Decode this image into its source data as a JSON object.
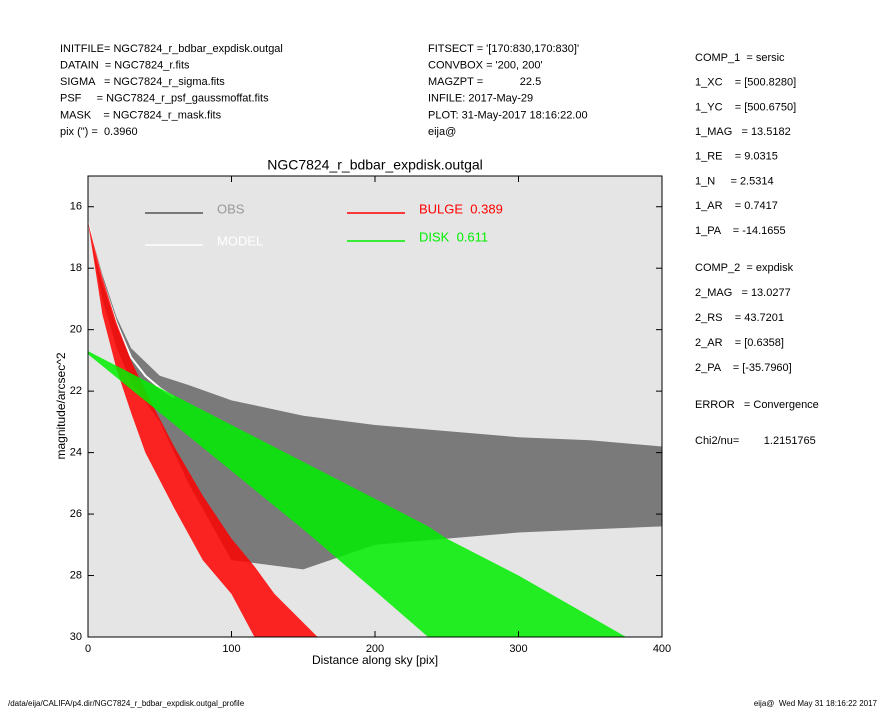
{
  "header": {
    "left": [
      "INITFILE= NGC7824_r_bdbar_expdisk.outgal",
      "DATAIN  = NGC7824_r.fits",
      "SIGMA   = NGC7824_r_sigma.fits",
      "PSF     = NGC7824_r_psf_gaussmoffat.fits",
      "MASK    = NGC7824_r_mask.fits",
      "pix (\") =  0.3960"
    ],
    "middle": [
      "FITSECT = '[170:830,170:830]'",
      "CONVBOX = '200, 200'",
      "MAGZPT =            22.5",
      "INFILE: 2017-May-29",
      "PLOT: 31-May-2017 18:16:22.00",
      "eija@"
    ],
    "params1": [
      "COMP_1  = sersic",
      "1_XC    = [500.8280]",
      "1_YC    = [500.6750]",
      "1_MAG   = 13.5182",
      "1_RE    = 9.0315",
      "1_N     = 2.5314",
      "1_AR    = 0.7417",
      "1_PA    = -14.1655"
    ],
    "params2": [
      "COMP_2  = expdisk",
      "2_MAG   = 13.0277",
      "2_RS    = 43.7201",
      "2_AR    = [0.6358]",
      "2_PA    = [-35.7960]"
    ],
    "error": "ERROR   = Convergence",
    "chi2": "Chi2/nu=        1.2151765"
  },
  "footer": {
    "left": "/data/eija/CALIFA/p4.dir/NGC7824_r_bdbar_expdisk.outgal_profile",
    "right": "eija@  Wed May 31 18:16:22 2017"
  },
  "chart_data": {
    "type": "area",
    "title": "NGC7824_r_bdbar_expdisk.outgal",
    "x_label": "Distance along sky [pix]",
    "y_label": "magnitude/arcsec^2",
    "xlim": [
      0,
      400
    ],
    "xticks": [
      0,
      100,
      200,
      300,
      400
    ],
    "ylim": [
      30,
      15
    ],
    "yticks": [
      16,
      18,
      20,
      22,
      24,
      26,
      28,
      30
    ],
    "background": "#e5e5e5",
    "series": [
      {
        "name": "OBS",
        "color": "#555555",
        "x": [
          0,
          10,
          20,
          30,
          50,
          70,
          100,
          150,
          200,
          250,
          300,
          350,
          400
        ],
        "low": [
          16.5,
          18.2,
          19.6,
          20.6,
          21.5,
          21.8,
          22.3,
          22.8,
          23.1,
          23.3,
          23.5,
          23.6,
          23.8
        ],
        "high": [
          16.6,
          19.0,
          20.6,
          21.7,
          23.0,
          25.0,
          27.5,
          27.8,
          27.0,
          26.8,
          26.6,
          26.5,
          26.4
        ]
      },
      {
        "name": "MODEL",
        "color": "#ffffff",
        "x": [
          0,
          5,
          10,
          20,
          30,
          40,
          50,
          60
        ],
        "values": [
          16.5,
          17.5,
          18.4,
          19.8,
          20.9,
          21.5,
          21.9,
          22.2
        ]
      },
      {
        "name": "BULGE  0.389",
        "color": "#ff0000",
        "x": [
          0,
          10,
          20,
          30,
          40,
          60,
          80,
          100,
          116,
          130,
          160
        ],
        "low": [
          16.5,
          18.3,
          19.8,
          21.0,
          22.0,
          23.8,
          25.4,
          26.8,
          27.7,
          28.6,
          30
        ],
        "high": [
          16.5,
          19.5,
          21.3,
          22.7,
          24.0,
          25.8,
          27.5,
          28.6,
          30,
          null,
          null
        ]
      },
      {
        "name": "DISK  0.611",
        "color": "#00ee00",
        "x": [
          0,
          50,
          100,
          150,
          200,
          237,
          250,
          300,
          375
        ],
        "low": [
          20.7,
          21.9,
          23.1,
          24.3,
          25.5,
          26.4,
          26.8,
          28.0,
          30
        ],
        "high": [
          20.8,
          22.7,
          24.6,
          26.5,
          28.5,
          30,
          null,
          null,
          null
        ]
      }
    ]
  }
}
